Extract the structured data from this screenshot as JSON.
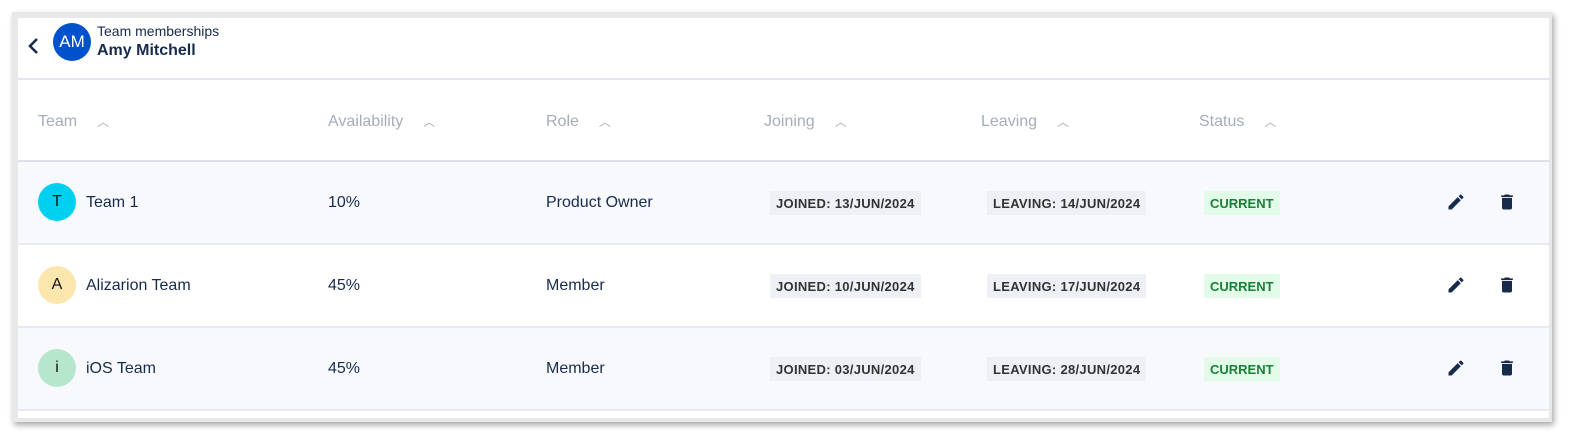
{
  "header": {
    "subtitle": "Team memberships",
    "name": "Amy Mitchell",
    "initials": "AM",
    "avatar_color": "#0052cc"
  },
  "columns": [
    "Team",
    "Availability",
    "Role",
    "Joining",
    "Leaving",
    "Status"
  ],
  "rows": [
    {
      "initial": "T",
      "avatar_color": "#00d0f0",
      "team": "Team 1",
      "availability": "10%",
      "role": "Product Owner",
      "joining": "JOINED: 13/JUN/2024",
      "leaving": "LEAVING: 14/JUN/2024",
      "status": "CURRENT"
    },
    {
      "initial": "A",
      "avatar_color": "#fbe7ad",
      "team": "Alizarion Team",
      "availability": "45%",
      "role": "Member",
      "joining": "JOINED: 10/JUN/2024",
      "leaving": "LEAVING: 17/JUN/2024",
      "status": "CURRENT"
    },
    {
      "initial": "i",
      "avatar_color": "#b6e6cc",
      "team": "iOS Team",
      "availability": "45%",
      "role": "Member",
      "joining": "JOINED: 03/JUN/2024",
      "leaving": "LEAVING: 28/JUN/2024",
      "status": "CURRENT"
    }
  ],
  "icons": {
    "back": "chevron-left-icon",
    "sort": "chevron-up-icon",
    "edit": "pencil-icon",
    "delete": "trash-icon"
  }
}
